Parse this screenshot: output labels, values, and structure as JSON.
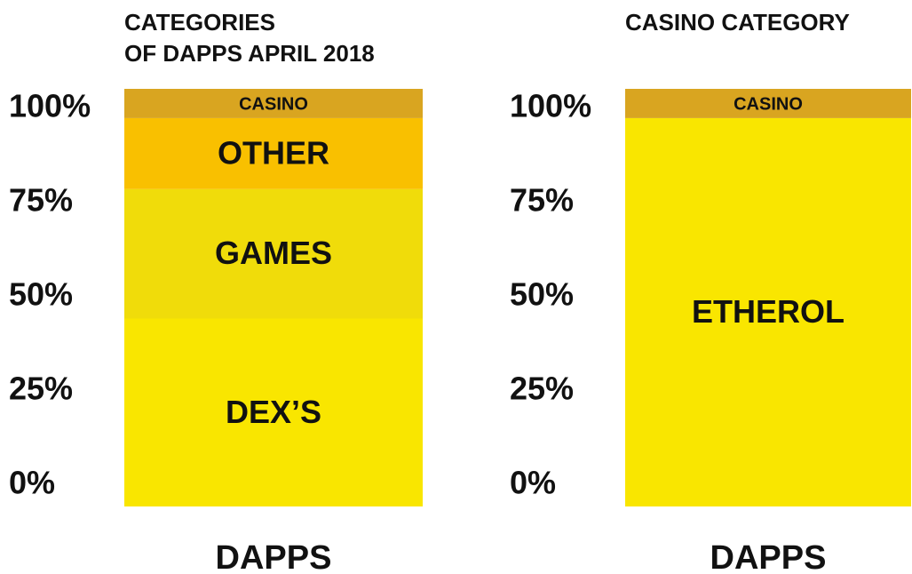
{
  "chart_data": [
    {
      "type": "stacked_bar",
      "title": [
        "CATEGORIES",
        "OF DAPPS APRIL 2018"
      ],
      "categories": [
        "DAPPS"
      ],
      "series": [
        {
          "name": "DEX’S",
          "color": "#f9e600",
          "values": [
            45
          ]
        },
        {
          "name": "GAMES",
          "color": "#f0dc0a",
          "values": [
            31
          ]
        },
        {
          "name": "OTHER",
          "color": "#f9c000",
          "values": [
            17
          ]
        },
        {
          "name": "CASINO",
          "color": "#d9a520",
          "values": [
            7
          ]
        }
      ],
      "ylim": [
        0,
        100
      ],
      "yticks": [
        {
          "value": 0,
          "label": "0%"
        },
        {
          "value": 25,
          "label": "25%"
        },
        {
          "value": 50,
          "label": "50%"
        },
        {
          "value": 75,
          "label": "75%"
        },
        {
          "value": 100,
          "label": "100%"
        }
      ]
    },
    {
      "type": "stacked_bar",
      "title": [
        "CASINO CATEGORY"
      ],
      "categories": [
        "DAPPS"
      ],
      "series": [
        {
          "name": "ETHEROL",
          "color": "#f9e600",
          "values": [
            93
          ]
        },
        {
          "name": "CASINO",
          "color": "#d9a520",
          "values": [
            7
          ]
        }
      ],
      "ylim": [
        0,
        100
      ],
      "yticks": [
        {
          "value": 0,
          "label": "0%"
        },
        {
          "value": 25,
          "label": "25%"
        },
        {
          "value": 50,
          "label": "50%"
        },
        {
          "value": 75,
          "label": "75%"
        },
        {
          "value": 100,
          "label": "100%"
        }
      ]
    }
  ]
}
